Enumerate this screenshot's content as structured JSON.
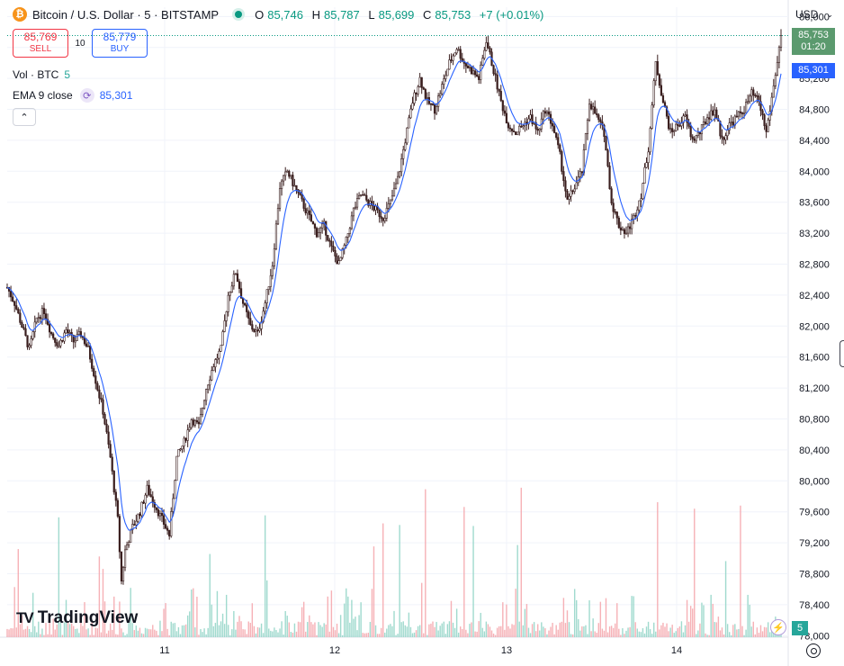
{
  "header": {
    "symbol_title": "Bitcoin / U.S. Dollar · 5 · BITSTAMP",
    "ohlc": [
      {
        "label": "O",
        "value": "85,746"
      },
      {
        "label": "H",
        "value": "85,787"
      },
      {
        "label": "L",
        "value": "85,699"
      },
      {
        "label": "C",
        "value": "85,753"
      }
    ],
    "change": "+7 (+0.01%)"
  },
  "trade": {
    "sell_price": "85,769",
    "sell_label": "SELL",
    "spread": "10",
    "buy_price": "85,779",
    "buy_label": "BUY"
  },
  "indicators": {
    "volume_label": "Vol · BTC",
    "volume_value": "5",
    "ema_label": "EMA 9 close",
    "ema_value": "85,301"
  },
  "currency_selector": "USD",
  "price_scale": {
    "last_price": "85,753",
    "countdown": "01:20",
    "ema_price": "85,301",
    "volume_badge": "5"
  },
  "brand": "TradingView",
  "colors": {
    "up": "#089981",
    "down": "#f23645",
    "ema": "#2962ff",
    "candle_body": "#3a1f1f",
    "last_price_bg": "#5b9a6e",
    "grid": "#f0f3fa"
  },
  "chart_data": {
    "type": "candlestick",
    "title": "Bitcoin / U.S. Dollar · 5 · BITSTAMP",
    "x_ticks": [
      "11",
      "12",
      "13",
      "14"
    ],
    "y_ticks": [
      78000,
      78400,
      78800,
      79200,
      79600,
      80000,
      80400,
      80800,
      81200,
      81600,
      82000,
      82400,
      82800,
      83200,
      83600,
      84000,
      84400,
      84800,
      85200,
      85600,
      86000
    ],
    "y_tick_labels": [
      "78,000",
      "78,400",
      "78,800",
      "79,200",
      "79,600",
      "80,000",
      "80,400",
      "80,800",
      "81,200",
      "81,600",
      "82,000",
      "82,400",
      "82,800",
      "83,200",
      "83,600",
      "84,000",
      "84,400",
      "84,800",
      "85,200",
      "85,600",
      "86,000"
    ],
    "ylim": [
      77980,
      86120
    ],
    "grid": true,
    "price_path": [
      [
        0,
        82500
      ],
      [
        4,
        82300
      ],
      [
        8,
        82000
      ],
      [
        12,
        81700
      ],
      [
        16,
        82100
      ],
      [
        20,
        82200
      ],
      [
        24,
        81900
      ],
      [
        28,
        81750
      ],
      [
        32,
        81950
      ],
      [
        36,
        81800
      ],
      [
        40,
        81900
      ],
      [
        44,
        81700
      ],
      [
        48,
        81300
      ],
      [
        52,
        80900
      ],
      [
        56,
        80300
      ],
      [
        60,
        79500
      ],
      [
        62,
        78700
      ],
      [
        64,
        79100
      ],
      [
        68,
        79400
      ],
      [
        72,
        79600
      ],
      [
        76,
        79900
      ],
      [
        80,
        79700
      ],
      [
        84,
        79500
      ],
      [
        88,
        79300
      ],
      [
        92,
        80300
      ],
      [
        96,
        80500
      ],
      [
        100,
        80800
      ],
      [
        104,
        80700
      ],
      [
        108,
        81200
      ],
      [
        112,
        81500
      ],
      [
        116,
        81700
      ],
      [
        120,
        82400
      ],
      [
        124,
        82700
      ],
      [
        128,
        82300
      ],
      [
        132,
        82000
      ],
      [
        136,
        81900
      ],
      [
        140,
        82300
      ],
      [
        144,
        82800
      ],
      [
        148,
        83800
      ],
      [
        152,
        84000
      ],
      [
        156,
        83800
      ],
      [
        160,
        83600
      ],
      [
        164,
        83400
      ],
      [
        168,
        83200
      ],
      [
        172,
        83300
      ],
      [
        176,
        83000
      ],
      [
        180,
        82800
      ],
      [
        184,
        83100
      ],
      [
        188,
        83500
      ],
      [
        192,
        83700
      ],
      [
        196,
        83600
      ],
      [
        200,
        83500
      ],
      [
        204,
        83400
      ],
      [
        208,
        83600
      ],
      [
        212,
        83900
      ],
      [
        216,
        84400
      ],
      [
        220,
        84900
      ],
      [
        224,
        85200
      ],
      [
        228,
        84900
      ],
      [
        232,
        84800
      ],
      [
        236,
        85100
      ],
      [
        240,
        85400
      ],
      [
        244,
        85600
      ],
      [
        248,
        85400
      ],
      [
        252,
        85300
      ],
      [
        256,
        85200
      ],
      [
        260,
        85700
      ],
      [
        264,
        85300
      ],
      [
        268,
        84900
      ],
      [
        272,
        84600
      ],
      [
        276,
        84500
      ],
      [
        280,
        84600
      ],
      [
        284,
        84700
      ],
      [
        288,
        84500
      ],
      [
        292,
        84800
      ],
      [
        296,
        84600
      ],
      [
        300,
        84200
      ],
      [
        304,
        83600
      ],
      [
        308,
        83800
      ],
      [
        312,
        84000
      ],
      [
        316,
        84900
      ],
      [
        320,
        84700
      ],
      [
        324,
        84500
      ],
      [
        328,
        83600
      ],
      [
        332,
        83300
      ],
      [
        336,
        83200
      ],
      [
        340,
        83400
      ],
      [
        344,
        83700
      ],
      [
        348,
        84300
      ],
      [
        352,
        85400
      ],
      [
        356,
        84900
      ],
      [
        360,
        84500
      ],
      [
        364,
        84600
      ],
      [
        368,
        84700
      ],
      [
        372,
        84400
      ],
      [
        376,
        84500
      ],
      [
        380,
        84700
      ],
      [
        384,
        84800
      ],
      [
        388,
        84400
      ],
      [
        392,
        84600
      ],
      [
        396,
        84700
      ],
      [
        400,
        84800
      ],
      [
        404,
        85000
      ],
      [
        408,
        84900
      ],
      [
        412,
        84500
      ],
      [
        416,
        85100
      ],
      [
        420,
        85753
      ]
    ],
    "ema9_last": 85301,
    "last_close": 85753
  }
}
